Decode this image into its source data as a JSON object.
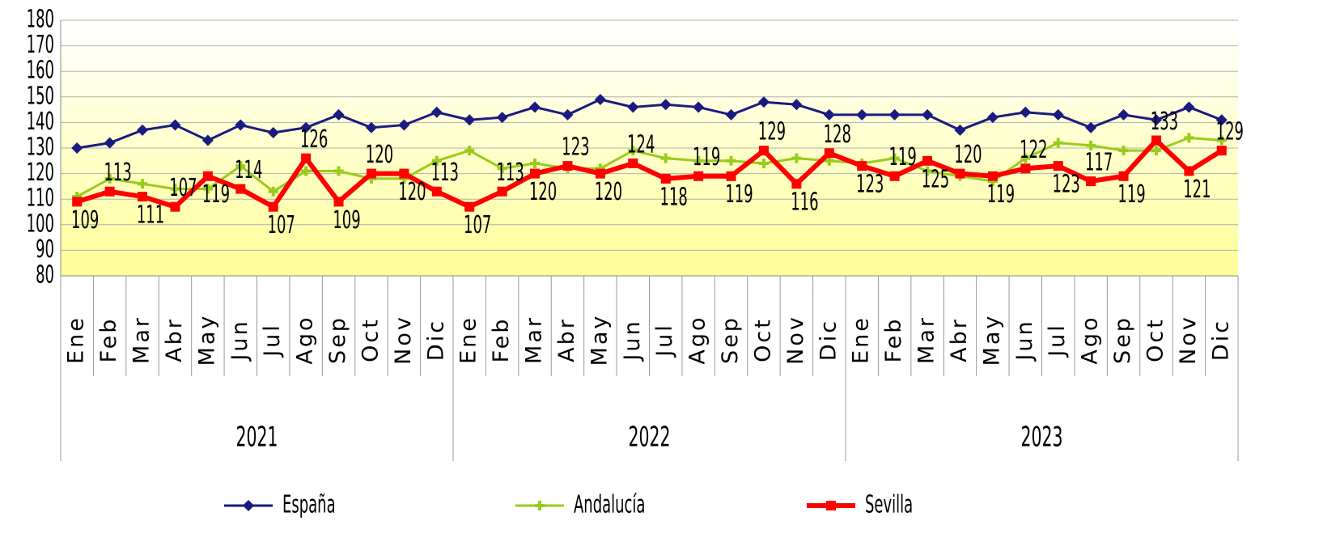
{
  "chart_data": {
    "type": "line",
    "categories": [
      "Ene",
      "Feb",
      "Mar",
      "Abr",
      "May",
      "Jun",
      "Jul",
      "Ago",
      "Sep",
      "Oct",
      "Nov",
      "Dic",
      "Ene",
      "Feb",
      "Mar",
      "Abr",
      "May",
      "Jun",
      "Jul",
      "Ago",
      "Sep",
      "Oct",
      "Nov",
      "Dic",
      "Ene",
      "Feb",
      "Mar",
      "Abr",
      "May",
      "Jun",
      "Jul",
      "Ago",
      "Sep",
      "Oct",
      "Nov",
      "Dic"
    ],
    "x_groups": [
      "2021",
      "2022",
      "2023"
    ],
    "series": [
      {
        "name": "España",
        "color": "#1a1a80",
        "marker": "diamond",
        "values": [
          130,
          132,
          137,
          139,
          133,
          139,
          136,
          138,
          143,
          138,
          139,
          144,
          141,
          142,
          146,
          143,
          149,
          146,
          147,
          146,
          143,
          148,
          147,
          143,
          143,
          143,
          143,
          137,
          142,
          144,
          143,
          138,
          143,
          141,
          146,
          141
        ]
      },
      {
        "name": "Andalucía",
        "color": "#99cc1a",
        "marker": "plus",
        "values": [
          111,
          118,
          116,
          114,
          114,
          123,
          113,
          121,
          121,
          118,
          118,
          125,
          129,
          122,
          124,
          122,
          122,
          129,
          126,
          125,
          125,
          124,
          126,
          125,
          124,
          126,
          121,
          119,
          117,
          126,
          132,
          131,
          129,
          129,
          134,
          133
        ]
      },
      {
        "name": "Sevilla",
        "color": "#ff0000",
        "marker": "square",
        "data_labels": true,
        "values": [
          109,
          113,
          111,
          107,
          119,
          114,
          107,
          126,
          109,
          120,
          120,
          113,
          107,
          113,
          120,
          123,
          120,
          124,
          118,
          119,
          119,
          129,
          116,
          128,
          123,
          119,
          125,
          120,
          119,
          122,
          123,
          117,
          119,
          133,
          121,
          129
        ]
      }
    ],
    "ylim": [
      80,
      180
    ],
    "yticks": [
      80,
      90,
      100,
      110,
      120,
      130,
      140,
      150,
      160,
      170,
      180
    ],
    "grid": true,
    "legend": "bottom"
  }
}
